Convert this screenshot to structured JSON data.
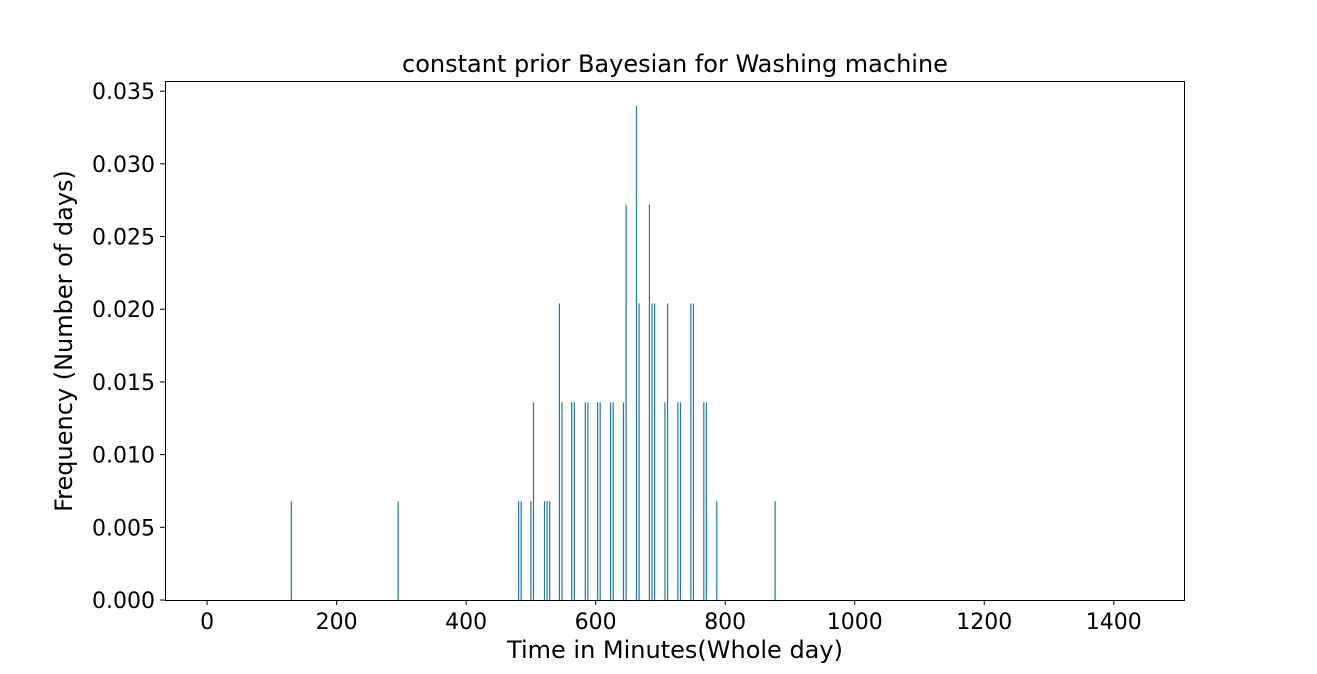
{
  "chart_data": {
    "type": "bar",
    "title": "constant prior Bayesian for Washing machine",
    "xlabel": "Time in Minutes(Whole day)",
    "ylabel": "Frequency (Number of days)",
    "xlim": [
      -65,
      1510
    ],
    "ylim": [
      0,
      0.0357
    ],
    "xticks": [
      0,
      200,
      400,
      600,
      800,
      1000,
      1200,
      1400
    ],
    "xtick_labels": [
      "0",
      "200",
      "400",
      "600",
      "800",
      "1000",
      "1200",
      "1400"
    ],
    "yticks": [
      0,
      0.005,
      0.01,
      0.015,
      0.02,
      0.025,
      0.03,
      0.035
    ],
    "ytick_labels": [
      "0.000",
      "0.005",
      "0.010",
      "0.015",
      "0.020",
      "0.025",
      "0.030",
      "0.035"
    ],
    "grid": false,
    "bar_color": "#1f77b4",
    "bars": [
      {
        "x": 130,
        "y": 0.0068
      },
      {
        "x": 295,
        "y": 0.0068
      },
      {
        "x": 481,
        "y": 0.0068
      },
      {
        "x": 485,
        "y": 0.0068
      },
      {
        "x": 500,
        "y": 0.0068
      },
      {
        "x": 504,
        "y": 0.0136
      },
      {
        "x": 521,
        "y": 0.0068
      },
      {
        "x": 525,
        "y": 0.0068
      },
      {
        "x": 529,
        "y": 0.0068
      },
      {
        "x": 544,
        "y": 0.0204
      },
      {
        "x": 548,
        "y": 0.0136
      },
      {
        "x": 563,
        "y": 0.0136
      },
      {
        "x": 567,
        "y": 0.0136
      },
      {
        "x": 584,
        "y": 0.0136
      },
      {
        "x": 588,
        "y": 0.0136
      },
      {
        "x": 603,
        "y": 0.0136
      },
      {
        "x": 607,
        "y": 0.0136
      },
      {
        "x": 623,
        "y": 0.0136
      },
      {
        "x": 627,
        "y": 0.0136
      },
      {
        "x": 643,
        "y": 0.0136
      },
      {
        "x": 647,
        "y": 0.0272
      },
      {
        "x": 663,
        "y": 0.034
      },
      {
        "x": 667,
        "y": 0.0204
      },
      {
        "x": 683,
        "y": 0.0272
      },
      {
        "x": 687,
        "y": 0.0204
      },
      {
        "x": 691,
        "y": 0.0204
      },
      {
        "x": 707,
        "y": 0.0136
      },
      {
        "x": 711,
        "y": 0.0204
      },
      {
        "x": 727,
        "y": 0.0136
      },
      {
        "x": 731,
        "y": 0.0136
      },
      {
        "x": 747,
        "y": 0.0204
      },
      {
        "x": 751,
        "y": 0.0204
      },
      {
        "x": 767,
        "y": 0.0136
      },
      {
        "x": 771,
        "y": 0.0136
      },
      {
        "x": 787,
        "y": 0.0068
      },
      {
        "x": 877,
        "y": 0.0068
      }
    ]
  }
}
